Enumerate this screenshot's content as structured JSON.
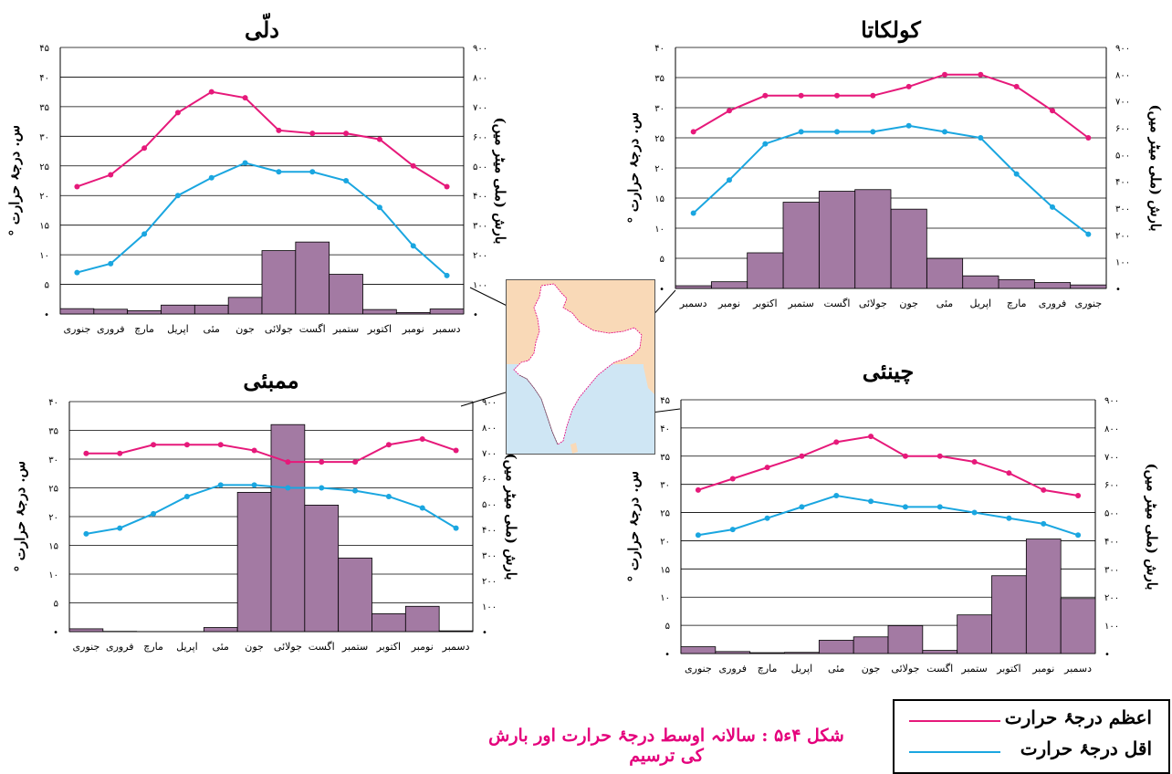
{
  "caption": "شکل ۴ء۵ : سالانہ اوسط درجۂ حرارت اور بارش کی ترسیم",
  "legend": {
    "max_label": "اعظم درجۂ حرارت",
    "min_label": "اقل درجۂ حرارت"
  },
  "colors": {
    "max_line": "#e6197a",
    "min_line": "#1aa6e0",
    "bars": "#a37aa3",
    "bar_border": "#000000",
    "map_land": "#f9d9b7",
    "map_sea": "#cfe6f4",
    "map_india": "#ffffff",
    "caption": "#e4007c"
  },
  "axis_titles": {
    "left": "س. درجۂ حرارت °",
    "right": "بارش (ملی میٹر میں)"
  },
  "chart_data": [
    {
      "id": "delhi",
      "type": "bar",
      "title": "دلّی",
      "categories": [
        "جنوری",
        "فروری",
        "مارچ",
        "اپریل",
        "مئی",
        "جون",
        "جولائی",
        "اگست",
        "ستمبر",
        "اکتوبر",
        "نومبر",
        "دسمبر"
      ],
      "category_order": "left-to-right",
      "series": [
        {
          "name": "اعظم درجۂ حرارت",
          "type": "line",
          "axis": "left",
          "values": [
            21.5,
            23.5,
            28,
            34,
            37.5,
            36.5,
            31,
            30.5,
            30.5,
            29.5,
            25,
            21.5
          ]
        },
        {
          "name": "اقل درجۂ حرارت",
          "type": "line",
          "axis": "left",
          "values": [
            7,
            8.5,
            13.5,
            20,
            23,
            25.5,
            24,
            24,
            22.5,
            18,
            11.5,
            6.5
          ]
        },
        {
          "name": "بارش",
          "type": "bar",
          "axis": "right",
          "values": [
            18,
            16,
            11,
            30,
            30,
            56,
            214,
            243,
            134,
            15,
            5,
            17
          ]
        }
      ],
      "ylim_left": [
        0,
        45
      ],
      "yticks_left": [
        "•",
        "۵",
        "۱۰",
        "۱۵",
        "۲۰",
        "۲۵",
        "۳۰",
        "۳۵",
        "۴۰",
        "۴۵"
      ],
      "ylim_right": [
        0,
        900
      ],
      "yticks_right": [
        "•",
        "۱۰۰",
        "۲۰۰",
        "۳۰۰",
        "۴۰۰",
        "۵۰۰",
        "۶۰۰",
        "۷۰۰",
        "۸۰۰",
        "۹۰۰"
      ],
      "grid": true
    },
    {
      "id": "kolkata",
      "type": "bar",
      "title": "کولکاتا",
      "categories": [
        "جنوری",
        "فروری",
        "مارچ",
        "اپریل",
        "مئی",
        "جون",
        "جولائی",
        "اگست",
        "ستمبر",
        "اکتوبر",
        "نومبر",
        "دسمبر"
      ],
      "category_order": "right-to-left",
      "series": [
        {
          "name": "اعظم درجۂ حرارت",
          "type": "line",
          "axis": "left",
          "values": [
            25,
            29.5,
            33.5,
            35.5,
            35.5,
            33.5,
            32,
            32,
            32,
            32,
            29.5,
            26
          ]
        },
        {
          "name": "اقل درجۂ حرارت",
          "type": "line",
          "axis": "left",
          "values": [
            9,
            13.5,
            19,
            25,
            26,
            27,
            26,
            26,
            26,
            24,
            18,
            12.5
          ]
        },
        {
          "name": "بارش",
          "type": "bar",
          "axis": "right",
          "values": [
            13,
            22,
            33,
            47,
            112,
            296,
            369,
            363,
            322,
            133,
            25,
            10
          ]
        }
      ],
      "ylim_left": [
        0,
        40
      ],
      "yticks_left": [
        "•",
        "۵",
        "۱۰",
        "۱۵",
        "۲۰",
        "۲۵",
        "۳۰",
        "۳۵",
        "۴۰"
      ],
      "ylim_right": [
        0,
        900
      ],
      "yticks_right": [
        "•",
        "۱۰۰",
        "۲۰۰",
        "۳۰۰",
        "۴۰۰",
        "۵۰۰",
        "۶۰۰",
        "۷۰۰",
        "۸۰۰",
        "۹۰۰"
      ],
      "grid": true
    },
    {
      "id": "mumbai",
      "type": "bar",
      "title": "ممبئی",
      "categories": [
        "جنوری",
        "فروری",
        "مارچ",
        "اپریل",
        "مئی",
        "جون",
        "جولائی",
        "اگست",
        "ستمبر",
        "اکتوبر",
        "نومبر",
        "دسمبر"
      ],
      "category_order": "left-to-right",
      "series": [
        {
          "name": "اعظم درجۂ حرارت",
          "type": "line",
          "axis": "left",
          "values": [
            31,
            31,
            32.5,
            32.5,
            32.5,
            31.5,
            29.5,
            29.5,
            29.5,
            32.5,
            33.5,
            31.5
          ]
        },
        {
          "name": "اقل درجۂ حرارت",
          "type": "line",
          "axis": "left",
          "values": [
            17,
            18,
            20.5,
            23.5,
            25.5,
            25.5,
            25,
            25,
            24.5,
            23.5,
            21.5,
            18
          ]
        },
        {
          "name": "بارش",
          "type": "bar",
          "axis": "right",
          "values": [
            11,
            1,
            0,
            0,
            16,
            545,
            810,
            495,
            288,
            70,
            99,
            3
          ]
        }
      ],
      "ylim_left": [
        0,
        40
      ],
      "yticks_left": [
        "•",
        "۵",
        "۱۰",
        "۱۵",
        "۲۰",
        "۲۵",
        "۳۰",
        "۳۵",
        "۴۰"
      ],
      "ylim_right": [
        0,
        900
      ],
      "yticks_right": [
        "•",
        "۱۰۰",
        "۲۰۰",
        "۳۰۰",
        "۴۰۰",
        "۵۰۰",
        "۶۰۰",
        "۷۰۰",
        "۸۰۰",
        "۹۰۰"
      ],
      "grid": true
    },
    {
      "id": "chennai",
      "type": "bar",
      "title": "چینئی",
      "categories": [
        "جنوری",
        "فروری",
        "مارچ",
        "اپریل",
        "مئی",
        "جون",
        "جولائی",
        "اگست",
        "ستمبر",
        "اکتوبر",
        "نومبر",
        "دسمبر"
      ],
      "category_order": "left-to-right",
      "series": [
        {
          "name": "اعظم درجۂ حرارت",
          "type": "line",
          "axis": "left",
          "values": [
            29,
            31,
            33,
            35,
            37.5,
            38.5,
            35,
            35,
            34,
            32,
            29,
            28
          ]
        },
        {
          "name": "اقل درجۂ حرارت",
          "type": "line",
          "axis": "left",
          "values": [
            21,
            22,
            24,
            26,
            28,
            27,
            26,
            26,
            25,
            24,
            23,
            21
          ]
        },
        {
          "name": "بارش",
          "type": "bar",
          "axis": "right",
          "values": [
            24,
            7,
            3,
            4,
            47,
            59,
            99,
            11,
            137,
            276,
            406,
            195
          ]
        }
      ],
      "ylim_left": [
        0,
        45
      ],
      "yticks_left": [
        "•",
        "۵",
        "۱۰",
        "۱۵",
        "۲۰",
        "۲۵",
        "۳۰",
        "۳۵",
        "۴۰",
        "۴۵"
      ],
      "ylim_right": [
        0,
        900
      ],
      "yticks_right": [
        "•",
        "۱۰۰",
        "۲۰۰",
        "۳۰۰",
        "۴۰۰",
        "۵۰۰",
        "۶۰۰",
        "۷۰۰",
        "۸۰۰",
        "۹۰۰"
      ],
      "grid": true
    }
  ]
}
